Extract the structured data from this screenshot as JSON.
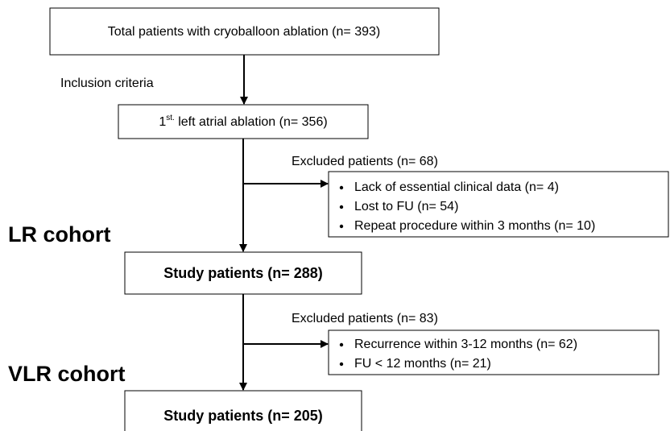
{
  "nodes": [
    {
      "label": "Total patients with cryoballoon ablation (n= 393)"
    },
    {
      "label_parts": [
        "1",
        "st.",
        " left atrial ablation (n= 356)"
      ]
    },
    {
      "label": "Study patients (n= 288)"
    },
    {
      "label": "Study patients (n= 205)"
    }
  ],
  "edge_labels": [
    "Inclusion criteria",
    "Excluded patients (n= 68)",
    "Excluded patients (n= 83)"
  ],
  "exclusions": [
    {
      "items": [
        "Lack of essential clinical data (n= 4)",
        "Lost to FU (n= 54)",
        "Repeat procedure within 3 months (n= 10)"
      ]
    },
    {
      "items": [
        "Recurrence within 3-12 months (n= 62)",
        "FU < 12 months (n= 21)"
      ]
    }
  ],
  "cohorts": [
    "LR cohort",
    "VLR cohort"
  ]
}
